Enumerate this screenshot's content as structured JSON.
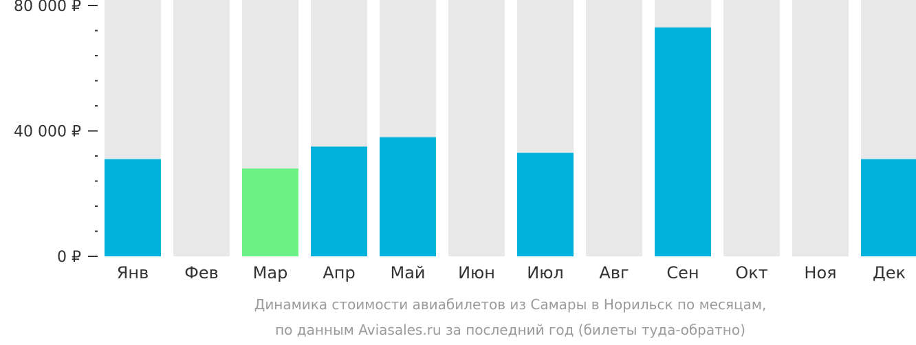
{
  "chart_data": {
    "type": "bar",
    "categories": [
      "Янв",
      "Фев",
      "Мар",
      "Апр",
      "Май",
      "Июн",
      "Июл",
      "Авг",
      "Сен",
      "Окт",
      "Ноя",
      "Дек"
    ],
    "values": [
      31000,
      null,
      28000,
      35000,
      38000,
      null,
      33000,
      null,
      73000,
      null,
      null,
      31000
    ],
    "ylim": [
      0,
      80000
    ],
    "yticks": [
      {
        "value": 0,
        "label": "0 ₽"
      },
      {
        "value": 40000,
        "label": "40 000 ₽"
      },
      {
        "value": 80000,
        "label": "80 000 ₽"
      }
    ],
    "minor_tick_step": 8000,
    "highlight_index": 2,
    "colors": {
      "bar": "#00b1dc",
      "highlight": "#6cf286",
      "background_bar": "#e8e8e8",
      "axis": "#333333"
    },
    "caption_lines": [
      "Динамика стоимости авиабилетов из Самары в Норильск по месяцам,",
      "по данным Aviasales.ru за последний год (билеты туда-обратно)"
    ]
  }
}
